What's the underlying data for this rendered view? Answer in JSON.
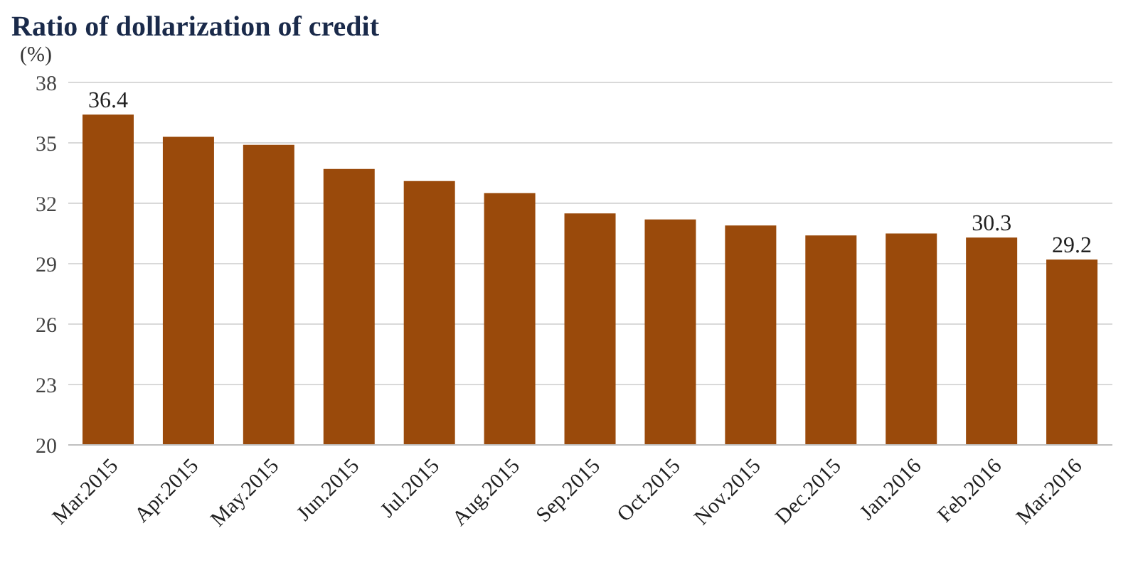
{
  "chart_data": {
    "type": "bar",
    "title": "Ratio of dollarization of credit",
    "ylabel": "(%)",
    "categories": [
      "Mar.2015",
      "Apr.2015",
      "May.2015",
      "Jun.2015",
      "Jul.2015",
      "Aug.2015",
      "Sep.2015",
      "Oct.2015",
      "Nov.2015",
      "Dec.2015",
      "Jan.2016",
      "Feb.2016",
      "Mar.2016"
    ],
    "values": [
      36.4,
      35.3,
      34.9,
      33.7,
      33.1,
      32.5,
      31.5,
      31.2,
      30.9,
      30.4,
      30.5,
      30.3,
      29.2
    ],
    "value_labels": [
      "36.4",
      null,
      null,
      null,
      null,
      null,
      null,
      null,
      null,
      null,
      null,
      "30.3",
      "29.2"
    ],
    "color": "#9a4a0b",
    "ylim": [
      20,
      38
    ],
    "yticks": [
      20,
      23,
      26,
      29,
      32,
      35,
      38
    ],
    "grid": "y"
  }
}
